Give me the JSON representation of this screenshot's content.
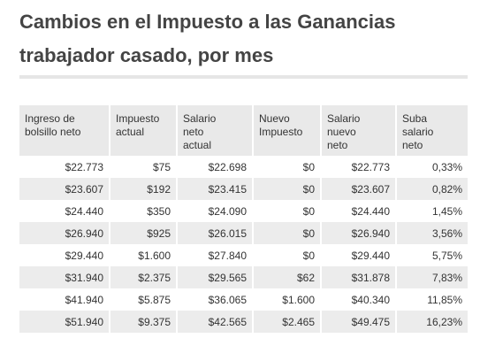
{
  "title": {
    "line1": "Cambios en el Impuesto a las Ganancias",
    "line2": "trabajador casado, por mes"
  },
  "table": {
    "headers": [
      [
        "Ingreso de",
        "bolsillo neto"
      ],
      [
        "Impuesto",
        "actual"
      ],
      [
        "Salario",
        "neto",
        "actual"
      ],
      [
        "Nuevo",
        "Impuesto"
      ],
      [
        "Salario",
        "nuevo",
        "neto"
      ],
      [
        "Suba",
        "salario",
        "neto"
      ]
    ],
    "rows": [
      [
        "$22.773",
        "$75",
        "$22.698",
        "$0",
        "$22.773",
        "0,33%"
      ],
      [
        "$23.607",
        "$192",
        "$23.415",
        "$0",
        "$23.607",
        "0,82%"
      ],
      [
        "$24.440",
        "$350",
        "$24.090",
        "$0",
        "$24.440",
        "1,45%"
      ],
      [
        "$26.940",
        "$925",
        "$26.015",
        "$0",
        "$26.940",
        "3,56%"
      ],
      [
        "$29.440",
        "$1.600",
        "$27.840",
        "$0",
        "$29.440",
        "5,75%"
      ],
      [
        "$31.940",
        "$2.375",
        "$29.565",
        "$62",
        "$31.878",
        "7,83%"
      ],
      [
        "$41.940",
        "$5.875",
        "$36.065",
        "$1.600",
        "$40.340",
        "11,85%"
      ],
      [
        "$51.940",
        "$9.375",
        "$42.565",
        "$2.465",
        "$49.475",
        "16,23%"
      ]
    ]
  },
  "colors": {
    "header_bg": "#e9e9e9",
    "alt_row_bg": "#ececec",
    "title_text": "#444444"
  }
}
